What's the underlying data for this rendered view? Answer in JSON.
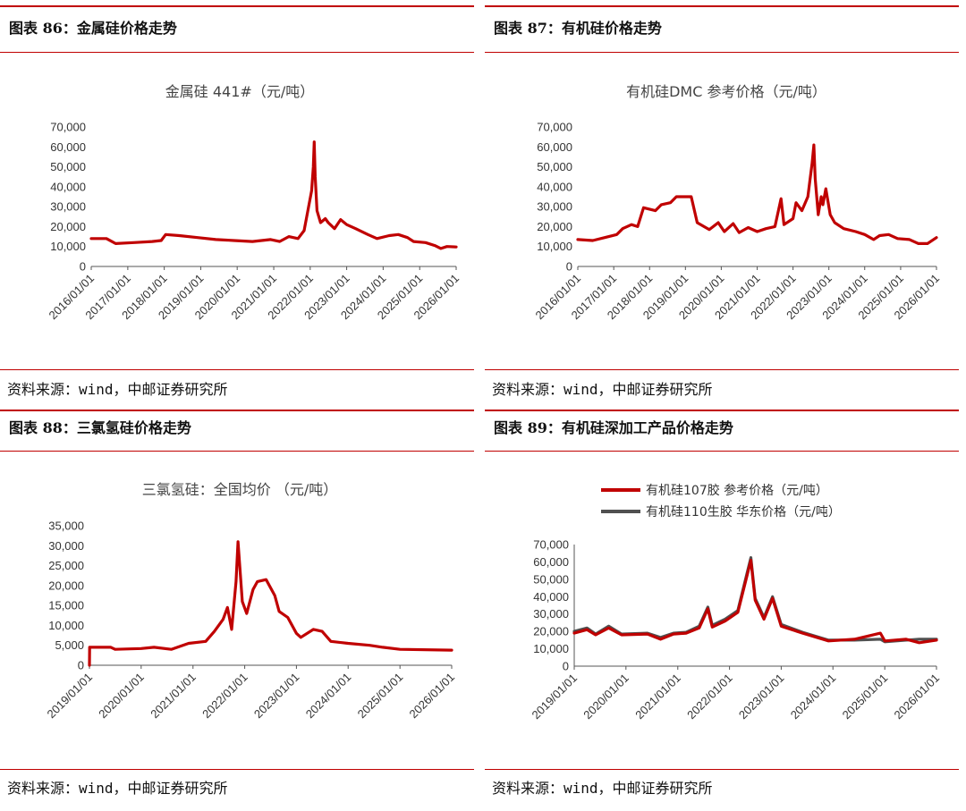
{
  "colors": {
    "accent": "#c00000",
    "series_red": "#c00000",
    "series_gray": "#505050"
  },
  "panels": [
    {
      "figure_title": "图表 86：金属硅价格走势",
      "source": "资料来源：wind，中邮证券研究所"
    },
    {
      "figure_title": "图表 87：有机硅价格走势",
      "source": "资料来源：wind，中邮证券研究所"
    },
    {
      "figure_title": "图表 88：三氯氢硅价格走势",
      "source": "资料来源：wind，中邮证券研究所"
    },
    {
      "figure_title": "图表 89：有机硅深加工产品价格走势",
      "source": "资料来源：wind，中邮证券研究所"
    }
  ],
  "chart_data": [
    {
      "type": "line",
      "title": "金属硅 441#（元/吨）",
      "xlim": [
        "2016/01/01",
        "2026/01/01"
      ],
      "ylim": [
        0,
        70000
      ],
      "x_ticks": [
        "2016/01/01",
        "2017/01/01",
        "2018/01/01",
        "2019/01/01",
        "2020/01/01",
        "2021/01/01",
        "2022/01/01",
        "2023/01/01",
        "2024/01/01",
        "2025/01/01",
        "2026/01/01"
      ],
      "y_ticks": [
        "0",
        "10,000",
        "20,000",
        "30,000",
        "40,000",
        "50,000",
        "60,000",
        "70,000"
      ],
      "series": [
        {
          "color": "#c00000",
          "points": [
            [
              "2016/01/01",
              14000
            ],
            [
              "2016/06/01",
              14000
            ],
            [
              "2016/09/01",
              11500
            ],
            [
              "2017/03/01",
              12000
            ],
            [
              "2017/09/01",
              12500
            ],
            [
              "2017/12/01",
              13000
            ],
            [
              "2018/01/15",
              16000
            ],
            [
              "2018/06/01",
              15500
            ],
            [
              "2018/12/01",
              14500
            ],
            [
              "2019/06/01",
              13500
            ],
            [
              "2019/12/01",
              13000
            ],
            [
              "2020/06/01",
              12500
            ],
            [
              "2020/12/01",
              13500
            ],
            [
              "2021/03/01",
              12500
            ],
            [
              "2021/06/01",
              15000
            ],
            [
              "2021/09/01",
              14000
            ],
            [
              "2021/11/01",
              18000
            ],
            [
              "2022/01/15",
              38000
            ],
            [
              "2022/02/01",
              50000
            ],
            [
              "2022/02/10",
              62500
            ],
            [
              "2022/02/20",
              45000
            ],
            [
              "2022/03/10",
              28000
            ],
            [
              "2022/04/15",
              22000
            ],
            [
              "2022/06/01",
              24000
            ],
            [
              "2022/07/01",
              22000
            ],
            [
              "2022/09/01",
              19000
            ],
            [
              "2022/11/01",
              23500
            ],
            [
              "2023/01/01",
              21000
            ],
            [
              "2023/04/01",
              19000
            ],
            [
              "2023/08/01",
              16000
            ],
            [
              "2023/11/01",
              14000
            ],
            [
              "2024/03/01",
              15500
            ],
            [
              "2024/06/01",
              16000
            ],
            [
              "2024/09/01",
              14500
            ],
            [
              "2024/11/01",
              12500
            ],
            [
              "2025/03/01",
              12000
            ],
            [
              "2025/06/01",
              10500
            ],
            [
              "2025/08/01",
              9000
            ],
            [
              "2025/10/01",
              10000
            ],
            [
              "2026/01/01",
              9800
            ]
          ]
        }
      ]
    },
    {
      "type": "line",
      "title": "有机硅DMC 参考价格（元/吨）",
      "xlim": [
        "2016/01/01",
        "2026/01/01"
      ],
      "ylim": [
        0,
        70000
      ],
      "x_ticks": [
        "2016/01/01",
        "2017/01/01",
        "2018/01/01",
        "2019/01/01",
        "2020/01/01",
        "2021/01/01",
        "2022/01/01",
        "2023/01/01",
        "2024/01/01",
        "2025/01/01",
        "2026/01/01"
      ],
      "y_ticks": [
        "0",
        "10,000",
        "20,000",
        "30,000",
        "40,000",
        "50,000",
        "60,000",
        "70,000"
      ],
      "series": [
        {
          "color": "#c00000",
          "points": [
            [
              "2016/01/01",
              13500
            ],
            [
              "2016/06/01",
              13000
            ],
            [
              "2016/10/01",
              14500
            ],
            [
              "2017/02/01",
              16000
            ],
            [
              "2017/04/01",
              19000
            ],
            [
              "2017/07/01",
              21000
            ],
            [
              "2017/09/01",
              20000
            ],
            [
              "2017/11/01",
              29500
            ],
            [
              "2018/03/01",
              28000
            ],
            [
              "2018/05/01",
              31000
            ],
            [
              "2018/08/01",
              32000
            ],
            [
              "2018/10/01",
              35000
            ],
            [
              "2019/03/01",
              35000
            ],
            [
              "2019/05/01",
              22000
            ],
            [
              "2019/09/01",
              18500
            ],
            [
              "2019/12/01",
              22000
            ],
            [
              "2020/02/01",
              17500
            ],
            [
              "2020/05/01",
              21500
            ],
            [
              "2020/07/01",
              17000
            ],
            [
              "2020/10/01",
              19500
            ],
            [
              "2021/01/01",
              17500
            ],
            [
              "2021/04/01",
              19000
            ],
            [
              "2021/07/01",
              20000
            ],
            [
              "2021/09/01",
              34000
            ],
            [
              "2021/10/01",
              21000
            ],
            [
              "2022/01/01",
              24000
            ],
            [
              "2022/02/01",
              32000
            ],
            [
              "2022/04/01",
              28000
            ],
            [
              "2022/06/01",
              35000
            ],
            [
              "2022/07/15",
              52000
            ],
            [
              "2022/08/01",
              61000
            ],
            [
              "2022/08/15",
              44000
            ],
            [
              "2022/09/15",
              26000
            ],
            [
              "2022/10/15",
              35000
            ],
            [
              "2022/11/01",
              31000
            ],
            [
              "2022/12/01",
              39000
            ],
            [
              "2023/01/15",
              26000
            ],
            [
              "2023/03/01",
              22000
            ],
            [
              "2023/06/01",
              19000
            ],
            [
              "2023/10/01",
              17500
            ],
            [
              "2024/01/01",
              16000
            ],
            [
              "2024/04/01",
              13500
            ],
            [
              "2024/06/01",
              15500
            ],
            [
              "2024/09/01",
              16000
            ],
            [
              "2024/12/01",
              14000
            ],
            [
              "2025/04/01",
              13500
            ],
            [
              "2025/07/01",
              11500
            ],
            [
              "2025/10/01",
              11500
            ],
            [
              "2026/01/01",
              14500
            ]
          ]
        }
      ]
    },
    {
      "type": "line",
      "title": "三氯氢硅：全国均价 （元/吨）",
      "xlim": [
        "2019/01/01",
        "2026/01/01"
      ],
      "ylim": [
        0,
        35000
      ],
      "x_ticks": [
        "2019/01/01",
        "2020/01/01",
        "2021/01/01",
        "2022/01/01",
        "2023/01/01",
        "2024/01/01",
        "2025/01/01",
        "2026/01/01"
      ],
      "y_ticks": [
        "0",
        "5,000",
        "10,000",
        "15,000",
        "20,000",
        "25,000",
        "30,000",
        "35,000"
      ],
      "series": [
        {
          "color": "#c00000",
          "points": [
            [
              "2019/01/01",
              0
            ],
            [
              "2019/01/02",
              4500
            ],
            [
              "2019/06/01",
              4500
            ],
            [
              "2019/07/01",
              4000
            ],
            [
              "2020/01/01",
              4200
            ],
            [
              "2020/04/01",
              4500
            ],
            [
              "2020/08/01",
              4000
            ],
            [
              "2020/12/01",
              5500
            ],
            [
              "2021/04/01",
              6000
            ],
            [
              "2021/06/01",
              8500
            ],
            [
              "2021/08/01",
              11500
            ],
            [
              "2021/09/01",
              14500
            ],
            [
              "2021/10/01",
              9000
            ],
            [
              "2021/11/01",
              21000
            ],
            [
              "2021/11/15",
              31000
            ],
            [
              "2021/12/15",
              16000
            ],
            [
              "2022/01/15",
              13000
            ],
            [
              "2022/03/01",
              19000
            ],
            [
              "2022/04/01",
              21000
            ],
            [
              "2022/06/01",
              21500
            ],
            [
              "2022/08/01",
              17500
            ],
            [
              "2022/09/01",
              13500
            ],
            [
              "2022/11/01",
              12000
            ],
            [
              "2023/01/01",
              8000
            ],
            [
              "2023/02/01",
              7000
            ],
            [
              "2023/05/01",
              9000
            ],
            [
              "2023/07/01",
              8500
            ],
            [
              "2023/09/01",
              6000
            ],
            [
              "2024/01/01",
              5500
            ],
            [
              "2024/06/01",
              5000
            ],
            [
              "2024/09/01",
              4500
            ],
            [
              "2025/01/01",
              4000
            ],
            [
              "2026/01/01",
              3800
            ]
          ]
        }
      ]
    },
    {
      "type": "line",
      "title": "",
      "xlim": [
        "2019/01/01",
        "2026/01/01"
      ],
      "ylim": [
        0,
        70000
      ],
      "x_ticks": [
        "2019/01/01",
        "2020/01/01",
        "2021/01/01",
        "2022/01/01",
        "2023/01/01",
        "2024/01/01",
        "2025/01/01",
        "2026/01/01"
      ],
      "y_ticks": [
        "0",
        "10,000",
        "20,000",
        "30,000",
        "40,000",
        "50,000",
        "60,000",
        "70,000"
      ],
      "legend": "top-left",
      "series": [
        {
          "name": "有机硅107胶 参考价格（元/吨）",
          "color": "#c00000",
          "points": [
            [
              "2019/01/01",
              19000
            ],
            [
              "2019/04/01",
              21000
            ],
            [
              "2019/06/01",
              18000
            ],
            [
              "2019/09/01",
              22000
            ],
            [
              "2019/12/01",
              18000
            ],
            [
              "2020/06/01",
              18500
            ],
            [
              "2020/09/01",
              15500
            ],
            [
              "2020/12/01",
              18500
            ],
            [
              "2021/03/01",
              19000
            ],
            [
              "2021/06/01",
              22000
            ],
            [
              "2021/08/01",
              33000
            ],
            [
              "2021/09/01",
              22500
            ],
            [
              "2021/12/01",
              26000
            ],
            [
              "2022/03/01",
              31000
            ],
            [
              "2022/06/01",
              61000
            ],
            [
              "2022/07/01",
              38000
            ],
            [
              "2022/09/01",
              27000
            ],
            [
              "2022/11/01",
              39000
            ],
            [
              "2023/01/01",
              23000
            ],
            [
              "2023/06/01",
              19000
            ],
            [
              "2023/12/01",
              14500
            ],
            [
              "2024/06/01",
              15500
            ],
            [
              "2024/12/01",
              19000
            ],
            [
              "2025/01/01",
              14500
            ],
            [
              "2025/06/01",
              15500
            ],
            [
              "2025/09/01",
              13500
            ],
            [
              "2026/01/01",
              15000
            ]
          ]
        },
        {
          "name": "有机硅110生胶 华东价格（元/吨）",
          "color": "#505050",
          "points": [
            [
              "2019/01/01",
              20000
            ],
            [
              "2019/04/01",
              22000
            ],
            [
              "2019/06/01",
              18500
            ],
            [
              "2019/09/01",
              23000
            ],
            [
              "2019/12/01",
              18500
            ],
            [
              "2020/06/01",
              19000
            ],
            [
              "2020/09/01",
              16500
            ],
            [
              "2020/12/01",
              19000
            ],
            [
              "2021/03/01",
              19500
            ],
            [
              "2021/06/01",
              23000
            ],
            [
              "2021/08/01",
              34000
            ],
            [
              "2021/09/01",
              23500
            ],
            [
              "2021/12/01",
              27000
            ],
            [
              "2022/03/01",
              32000
            ],
            [
              "2022/06/01",
              62500
            ],
            [
              "2022/07/01",
              39000
            ],
            [
              "2022/09/01",
              28000
            ],
            [
              "2022/11/01",
              40000
            ],
            [
              "2023/01/01",
              24000
            ],
            [
              "2023/06/01",
              19500
            ],
            [
              "2023/12/01",
              15000
            ],
            [
              "2024/06/01",
              15000
            ],
            [
              "2024/12/01",
              15500
            ],
            [
              "2025/01/01",
              14000
            ],
            [
              "2025/06/01",
              15000
            ],
            [
              "2025/09/01",
              15500
            ],
            [
              "2026/01/01",
              15500
            ]
          ]
        }
      ]
    }
  ]
}
